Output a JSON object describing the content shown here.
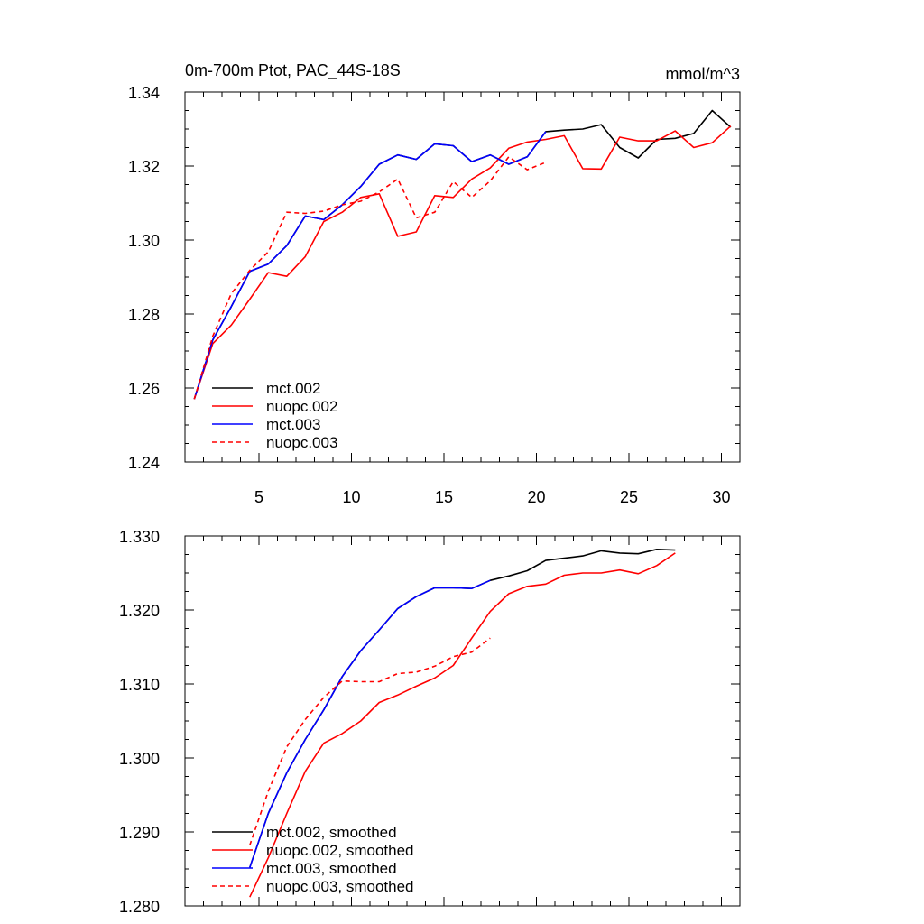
{
  "chart_data": [
    {
      "type": "line",
      "title": "0m-700m Ptot, PAC_44S-18S",
      "units": "mmol/m^3",
      "xlim": [
        1,
        31
      ],
      "ylim": [
        1.24,
        1.34
      ],
      "xticks": [
        5,
        10,
        15,
        20,
        25,
        30
      ],
      "xtick_labels": [
        "5",
        "10",
        "15",
        "20",
        "25",
        "30"
      ],
      "yticks": [
        1.24,
        1.26,
        1.28,
        1.3,
        1.32,
        1.34
      ],
      "ytick_labels": [
        "1.24",
        "1.26",
        "1.28",
        "1.30",
        "1.32",
        "1.34"
      ],
      "grid": false,
      "legend_position": "lower-left",
      "series": [
        {
          "name": "mct.002",
          "color": "#000000",
          "dash": "solid",
          "x": [
            1.5,
            2.5,
            3.5,
            4.5,
            5.5,
            6.5,
            7.5,
            8.5,
            9.5,
            10.5,
            11.5,
            12.5,
            13.5,
            14.5,
            15.5,
            16.5,
            17.5,
            18.5,
            19.5,
            20.5,
            21.5,
            22.5,
            23.5,
            24.5,
            25.5,
            26.5,
            27.5,
            28.5,
            29.5,
            30.5
          ],
          "y": [
            1.257,
            1.273,
            1.282,
            1.2915,
            1.2935,
            1.2985,
            1.3065,
            1.3055,
            1.3095,
            1.3145,
            1.3205,
            1.323,
            1.3218,
            1.326,
            1.3255,
            1.3212,
            1.323,
            1.3205,
            1.3225,
            1.3293,
            1.3297,
            1.33,
            1.3312,
            1.325,
            1.3222,
            1.3272,
            1.3275,
            1.3288,
            1.335,
            1.3305
          ]
        },
        {
          "name": "nuopc.002",
          "color": "#ff0000",
          "dash": "solid",
          "x": [
            1.5,
            2.5,
            3.5,
            4.5,
            5.5,
            6.5,
            7.5,
            8.5,
            9.5,
            10.5,
            11.5,
            12.5,
            13.5,
            14.5,
            15.5,
            16.5,
            17.5,
            18.5,
            19.5,
            20.5,
            21.5,
            22.5,
            23.5,
            24.5,
            25.5,
            26.5,
            27.5,
            28.5,
            29.5,
            30.5
          ],
          "y": [
            1.257,
            1.272,
            1.277,
            1.284,
            1.2912,
            1.2902,
            1.2955,
            1.305,
            1.3075,
            1.3115,
            1.3125,
            1.301,
            1.3022,
            1.312,
            1.3115,
            1.3165,
            1.3195,
            1.3248,
            1.3265,
            1.3272,
            1.3282,
            1.3193,
            1.3192,
            1.3278,
            1.3268,
            1.3268,
            1.3295,
            1.325,
            1.3263,
            1.3308
          ]
        },
        {
          "name": "mct.003",
          "color": "#0000ff",
          "dash": "solid",
          "x": [
            1.5,
            2.5,
            3.5,
            4.5,
            5.5,
            6.5,
            7.5,
            8.5,
            9.5,
            10.5,
            11.5,
            12.5,
            13.5,
            14.5,
            15.5,
            16.5,
            17.5,
            18.5,
            19.5,
            20.5
          ],
          "y": [
            1.257,
            1.273,
            1.282,
            1.2915,
            1.2935,
            1.2985,
            1.3065,
            1.3055,
            1.3095,
            1.3145,
            1.3205,
            1.323,
            1.3218,
            1.326,
            1.3255,
            1.3212,
            1.323,
            1.3205,
            1.3225,
            1.3293
          ]
        },
        {
          "name": "nuopc.003",
          "color": "#ff0000",
          "dash": "dashed",
          "x": [
            1.5,
            2.5,
            3.5,
            4.5,
            5.5,
            6.5,
            7.5,
            8.5,
            9.5,
            10.5,
            11.5,
            12.5,
            13.5,
            14.5,
            15.5,
            16.5,
            17.5,
            18.5,
            19.5,
            20.5
          ],
          "y": [
            1.257,
            1.274,
            1.2855,
            1.2918,
            1.2968,
            1.3075,
            1.3072,
            1.3078,
            1.3095,
            1.3105,
            1.313,
            1.3165,
            1.306,
            1.3075,
            1.3158,
            1.3115,
            1.316,
            1.3225,
            1.319,
            1.321
          ]
        }
      ]
    },
    {
      "type": "line",
      "xlim": [
        1,
        31
      ],
      "ylim": [
        1.28,
        1.33
      ],
      "xticks": [
        5,
        10,
        15,
        20,
        25,
        30
      ],
      "yticks": [
        1.28,
        1.29,
        1.3,
        1.31,
        1.32,
        1.33
      ],
      "ytick_labels": [
        "1.280",
        "1.290",
        "1.300",
        "1.310",
        "1.320",
        "1.330"
      ],
      "grid": false,
      "legend_position": "lower-left",
      "series": [
        {
          "name": "mct.002, smoothed",
          "color": "#000000",
          "dash": "solid",
          "x": [
            4.5,
            5.5,
            6.5,
            7.5,
            8.5,
            9.5,
            10.5,
            11.5,
            12.5,
            13.5,
            14.5,
            15.5,
            16.5,
            17.5,
            18.5,
            19.5,
            20.5,
            21.5,
            22.5,
            23.5,
            24.5,
            25.5,
            26.5,
            27.5
          ],
          "y": [
            1.2852,
            1.2925,
            1.298,
            1.3025,
            1.3065,
            1.311,
            1.3145,
            1.3173,
            1.3202,
            1.3218,
            1.323,
            1.323,
            1.3229,
            1.324,
            1.3246,
            1.3253,
            1.3267,
            1.327,
            1.3273,
            1.328,
            1.3277,
            1.3276,
            1.3282,
            1.3281
          ]
        },
        {
          "name": "nuopc.002, smoothed",
          "color": "#ff0000",
          "dash": "solid",
          "x": [
            4.5,
            5.5,
            6.5,
            7.5,
            8.5,
            9.5,
            10.5,
            11.5,
            12.5,
            13.5,
            14.5,
            15.5,
            16.5,
            17.5,
            18.5,
            19.5,
            20.5,
            21.5,
            22.5,
            23.5,
            24.5,
            25.5,
            26.5,
            27.5
          ],
          "y": [
            1.2812,
            1.2865,
            1.2925,
            1.2982,
            1.302,
            1.3033,
            1.305,
            1.3075,
            1.3085,
            1.3097,
            1.3108,
            1.3125,
            1.3162,
            1.3198,
            1.3222,
            1.3232,
            1.3235,
            1.3247,
            1.325,
            1.325,
            1.3254,
            1.3249,
            1.326,
            1.3277
          ]
        },
        {
          "name": "mct.003, smoothed",
          "color": "#0000ff",
          "dash": "solid",
          "x": [
            4.5,
            5.5,
            6.5,
            7.5,
            8.5,
            9.5,
            10.5,
            11.5,
            12.5,
            13.5,
            14.5,
            15.5,
            16.5,
            17.5
          ],
          "y": [
            1.2852,
            1.2925,
            1.298,
            1.3025,
            1.3065,
            1.311,
            1.3145,
            1.3173,
            1.3202,
            1.3218,
            1.323,
            1.323,
            1.3229,
            1.324
          ]
        },
        {
          "name": "nuopc.003, smoothed",
          "color": "#ff0000",
          "dash": "dashed",
          "x": [
            4.5,
            5.5,
            6.5,
            7.5,
            8.5,
            9.5,
            10.5,
            11.5,
            12.5,
            13.5,
            14.5,
            15.5,
            16.5,
            17.5
          ],
          "y": [
            1.2882,
            1.2955,
            1.3015,
            1.3052,
            1.3082,
            1.3104,
            1.3103,
            1.3103,
            1.3114,
            1.3116,
            1.3124,
            1.3137,
            1.3143,
            1.3162
          ]
        }
      ]
    }
  ]
}
